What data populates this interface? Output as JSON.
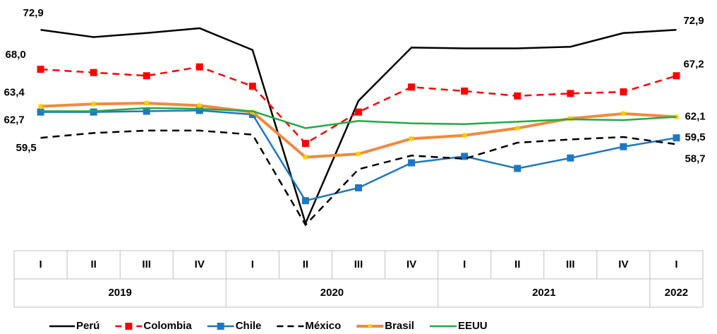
{
  "chart_data": {
    "type": "line",
    "categories": [
      "I",
      "II",
      "III",
      "IV",
      "I",
      "II",
      "III",
      "IV",
      "I",
      "II",
      "III",
      "IV",
      "I"
    ],
    "groups": [
      {
        "label": "2019",
        "span": 4
      },
      {
        "label": "2020",
        "span": 4
      },
      {
        "label": "2021",
        "span": 4
      },
      {
        "label": "2022",
        "span": 1
      }
    ],
    "ylim": [
      45.5,
      76.6
    ],
    "series": [
      {
        "name": "Perú",
        "color": "#000000",
        "dash": false,
        "marker": null,
        "values": [
          72.9,
          72.0,
          72.5,
          73.1,
          70.4,
          48.9,
          64.1,
          70.7,
          70.6,
          70.6,
          70.8,
          72.5,
          72.9
        ],
        "value_labels": [
          "72,9",
          null,
          null,
          null,
          null,
          null,
          null,
          null,
          null,
          null,
          null,
          null,
          "72,9"
        ]
      },
      {
        "name": "Colombia",
        "color": "#ff0000",
        "dash": true,
        "marker": "square",
        "values": [
          68.0,
          67.6,
          67.2,
          68.3,
          65.9,
          58.8,
          62.7,
          65.8,
          65.3,
          64.7,
          65.0,
          65.2,
          67.2
        ],
        "value_labels": [
          "68,0",
          null,
          null,
          null,
          null,
          null,
          null,
          null,
          null,
          null,
          null,
          null,
          "67,2"
        ]
      },
      {
        "name": "Chile",
        "color": "#1f77c4",
        "dash": false,
        "marker": "square",
        "values": [
          62.7,
          62.7,
          62.8,
          62.9,
          62.4,
          51.7,
          53.3,
          56.4,
          57.2,
          55.7,
          57.0,
          58.4,
          59.5
        ],
        "value_labels": [
          "62,7",
          null,
          null,
          null,
          null,
          null,
          null,
          null,
          null,
          null,
          null,
          null,
          "59,5"
        ]
      },
      {
        "name": "México",
        "color": "#000000",
        "dash": true,
        "marker": null,
        "values": [
          59.5,
          60.1,
          60.4,
          60.4,
          59.9,
          48.7,
          55.6,
          57.3,
          56.9,
          58.9,
          59.3,
          59.6,
          58.7
        ],
        "value_labels": [
          "59,5",
          null,
          null,
          null,
          null,
          null,
          null,
          null,
          null,
          null,
          null,
          null,
          "58,7"
        ]
      },
      {
        "name": "Brasil",
        "color": "#f08a3c",
        "dash": false,
        "marker": "star",
        "values": [
          63.4,
          63.7,
          63.8,
          63.5,
          62.7,
          57.1,
          57.5,
          59.4,
          59.8,
          60.7,
          61.9,
          62.5,
          62.1
        ],
        "value_labels": [
          "63,4",
          null,
          null,
          null,
          null,
          null,
          null,
          null,
          null,
          null,
          null,
          null,
          null
        ]
      },
      {
        "name": "EEUU",
        "color": "#22aa44",
        "dash": false,
        "marker": null,
        "values": [
          62.8,
          62.8,
          63.2,
          63.1,
          62.8,
          60.7,
          61.6,
          61.3,
          61.2,
          61.5,
          61.8,
          61.7,
          62.1
        ],
        "value_labels": [
          null,
          null,
          null,
          null,
          null,
          null,
          null,
          null,
          null,
          null,
          null,
          null,
          "62,1"
        ]
      }
    ]
  }
}
